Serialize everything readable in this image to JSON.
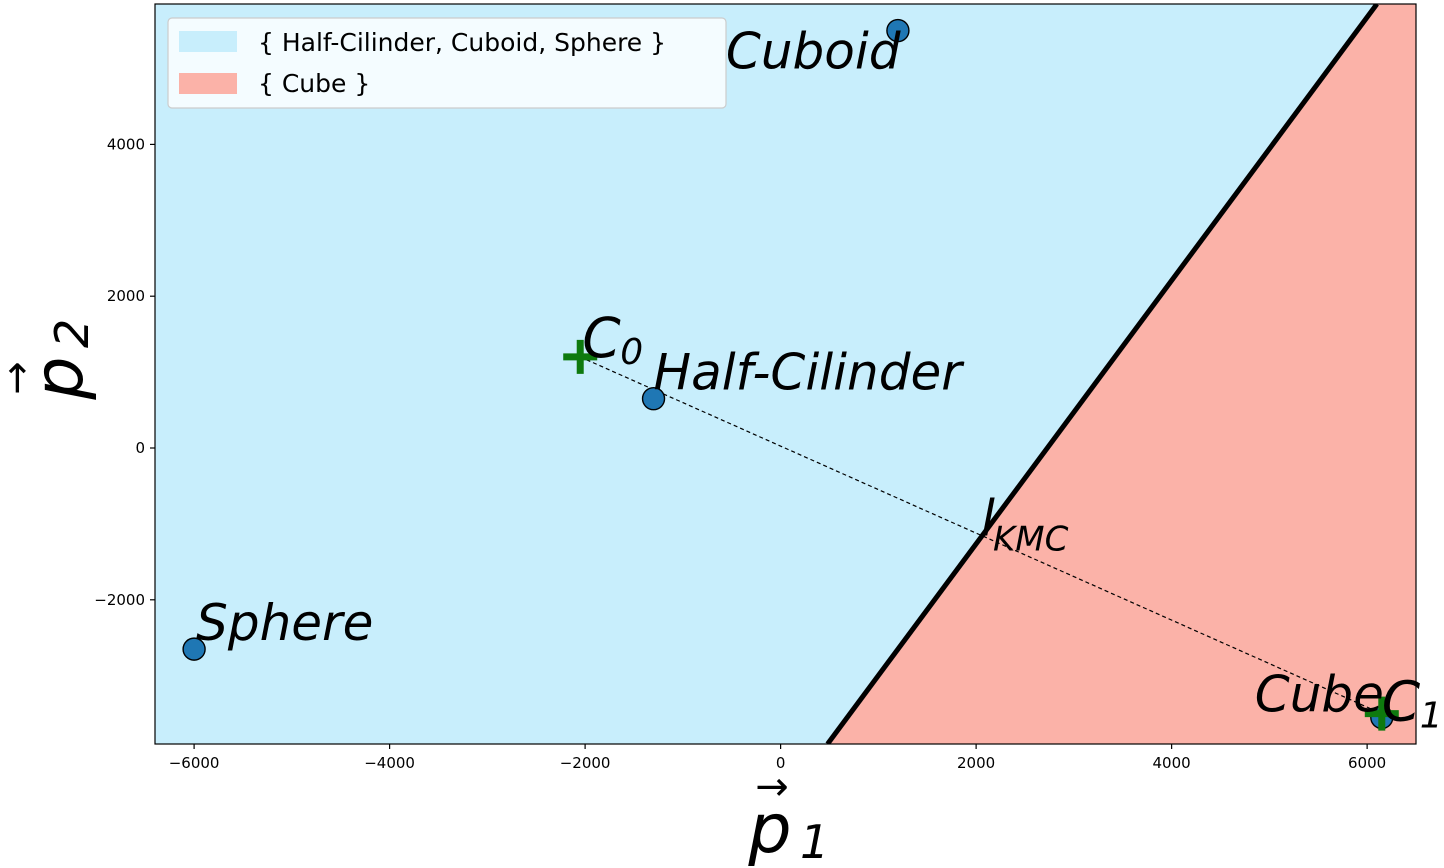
{
  "chart_data": {
    "type": "scatter",
    "xlim": [
      -6400,
      6500
    ],
    "ylim": [
      -3900,
      5850
    ],
    "xticks": [
      -6000,
      -4000,
      -2000,
      0,
      2000,
      4000,
      6000
    ],
    "xtick_labels": [
      "−6000",
      "−4000",
      "−2000",
      "0",
      "2000",
      "4000",
      "6000"
    ],
    "yticks": [
      -2000,
      0,
      2000,
      4000
    ],
    "ytick_labels": [
      "−2000",
      "0",
      "2000",
      "4000"
    ],
    "xlabel": {
      "base": "p",
      "sub": "1",
      "arrow": "→"
    },
    "ylabel": {
      "base": "p",
      "sub": "2",
      "arrow": "→"
    },
    "grid": false,
    "legend_placement": "top-left",
    "regions": [
      {
        "name": "{ Half-Cilinder, Cuboid, Sphere }",
        "color": "#c8eefc",
        "side": "left"
      },
      {
        "name": "{ Cube }",
        "color": "#fbb2a8",
        "side": "right"
      }
    ],
    "boundary": {
      "points": [
        [
          480,
          -3900
        ],
        [
          6100,
          5850
        ]
      ],
      "color": "#000000",
      "label_base": "l",
      "label_sub": "KMC",
      "label_at": [
        2050,
        -1150
      ]
    },
    "points": [
      {
        "name": "Cuboid",
        "x": 1200,
        "y": 5500
      },
      {
        "name": "Half-Cilinder",
        "x": -1300,
        "y": 650
      },
      {
        "name": "Sphere",
        "x": -6000,
        "y": -2650
      },
      {
        "name": "Cube",
        "x": 6150,
        "y": -3550
      }
    ],
    "centroids": [
      {
        "base": "C",
        "sub": "0",
        "x": -2050,
        "y": 1200
      },
      {
        "base": "C",
        "sub": "1",
        "x": 6150,
        "y": -3500
      }
    ],
    "connector": {
      "from": [
        -2050,
        1200
      ],
      "to": [
        6150,
        -3500
      ],
      "style": "dashed"
    },
    "colors": {
      "point": "#1f77b4",
      "centroid": "#0e7a0e",
      "axis": "#000000"
    }
  }
}
